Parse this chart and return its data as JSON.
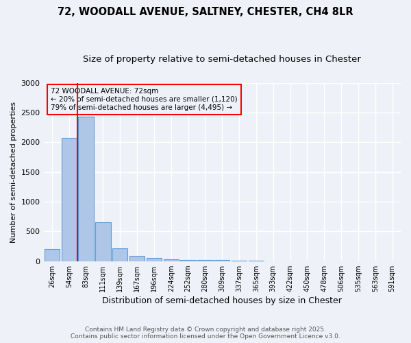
{
  "title_line1": "72, WOODALL AVENUE, SALTNEY, CHESTER, CH4 8LR",
  "title_line2": "Size of property relative to semi-detached houses in Chester",
  "xlabel": "Distribution of semi-detached houses by size in Chester",
  "ylabel": "Number of semi-detached properties",
  "bar_labels": [
    "26sqm",
    "54sqm",
    "83sqm",
    "111sqm",
    "139sqm",
    "167sqm",
    "196sqm",
    "224sqm",
    "252sqm",
    "280sqm",
    "309sqm",
    "337sqm",
    "365sqm",
    "393sqm",
    "422sqm",
    "450sqm",
    "478sqm",
    "506sqm",
    "535sqm",
    "563sqm",
    "591sqm"
  ],
  "bar_values": [
    200,
    2070,
    2430,
    650,
    220,
    90,
    50,
    35,
    25,
    20,
    15,
    5,
    3,
    2,
    1,
    1,
    1,
    0,
    0,
    0,
    0
  ],
  "bar_color": "#aec6e8",
  "bar_edge_color": "#5b9bd5",
  "red_line_x": 1.5,
  "annotation_line1": "72 WOODALL AVENUE: 72sqm",
  "annotation_line2": "← 20% of semi-detached houses are smaller (1,120)",
  "annotation_line3": "79% of semi-detached houses are larger (4,495) →",
  "ylim": [
    0,
    3000
  ],
  "yticks": [
    0,
    500,
    1000,
    1500,
    2000,
    2500,
    3000
  ],
  "footer_line1": "Contains HM Land Registry data © Crown copyright and database right 2025.",
  "footer_line2": "Contains public sector information licensed under the Open Government Licence v3.0.",
  "bg_color": "#eef2f8",
  "grid_color": "#ffffff",
  "title_fontsize": 10.5,
  "subtitle_fontsize": 9.5
}
